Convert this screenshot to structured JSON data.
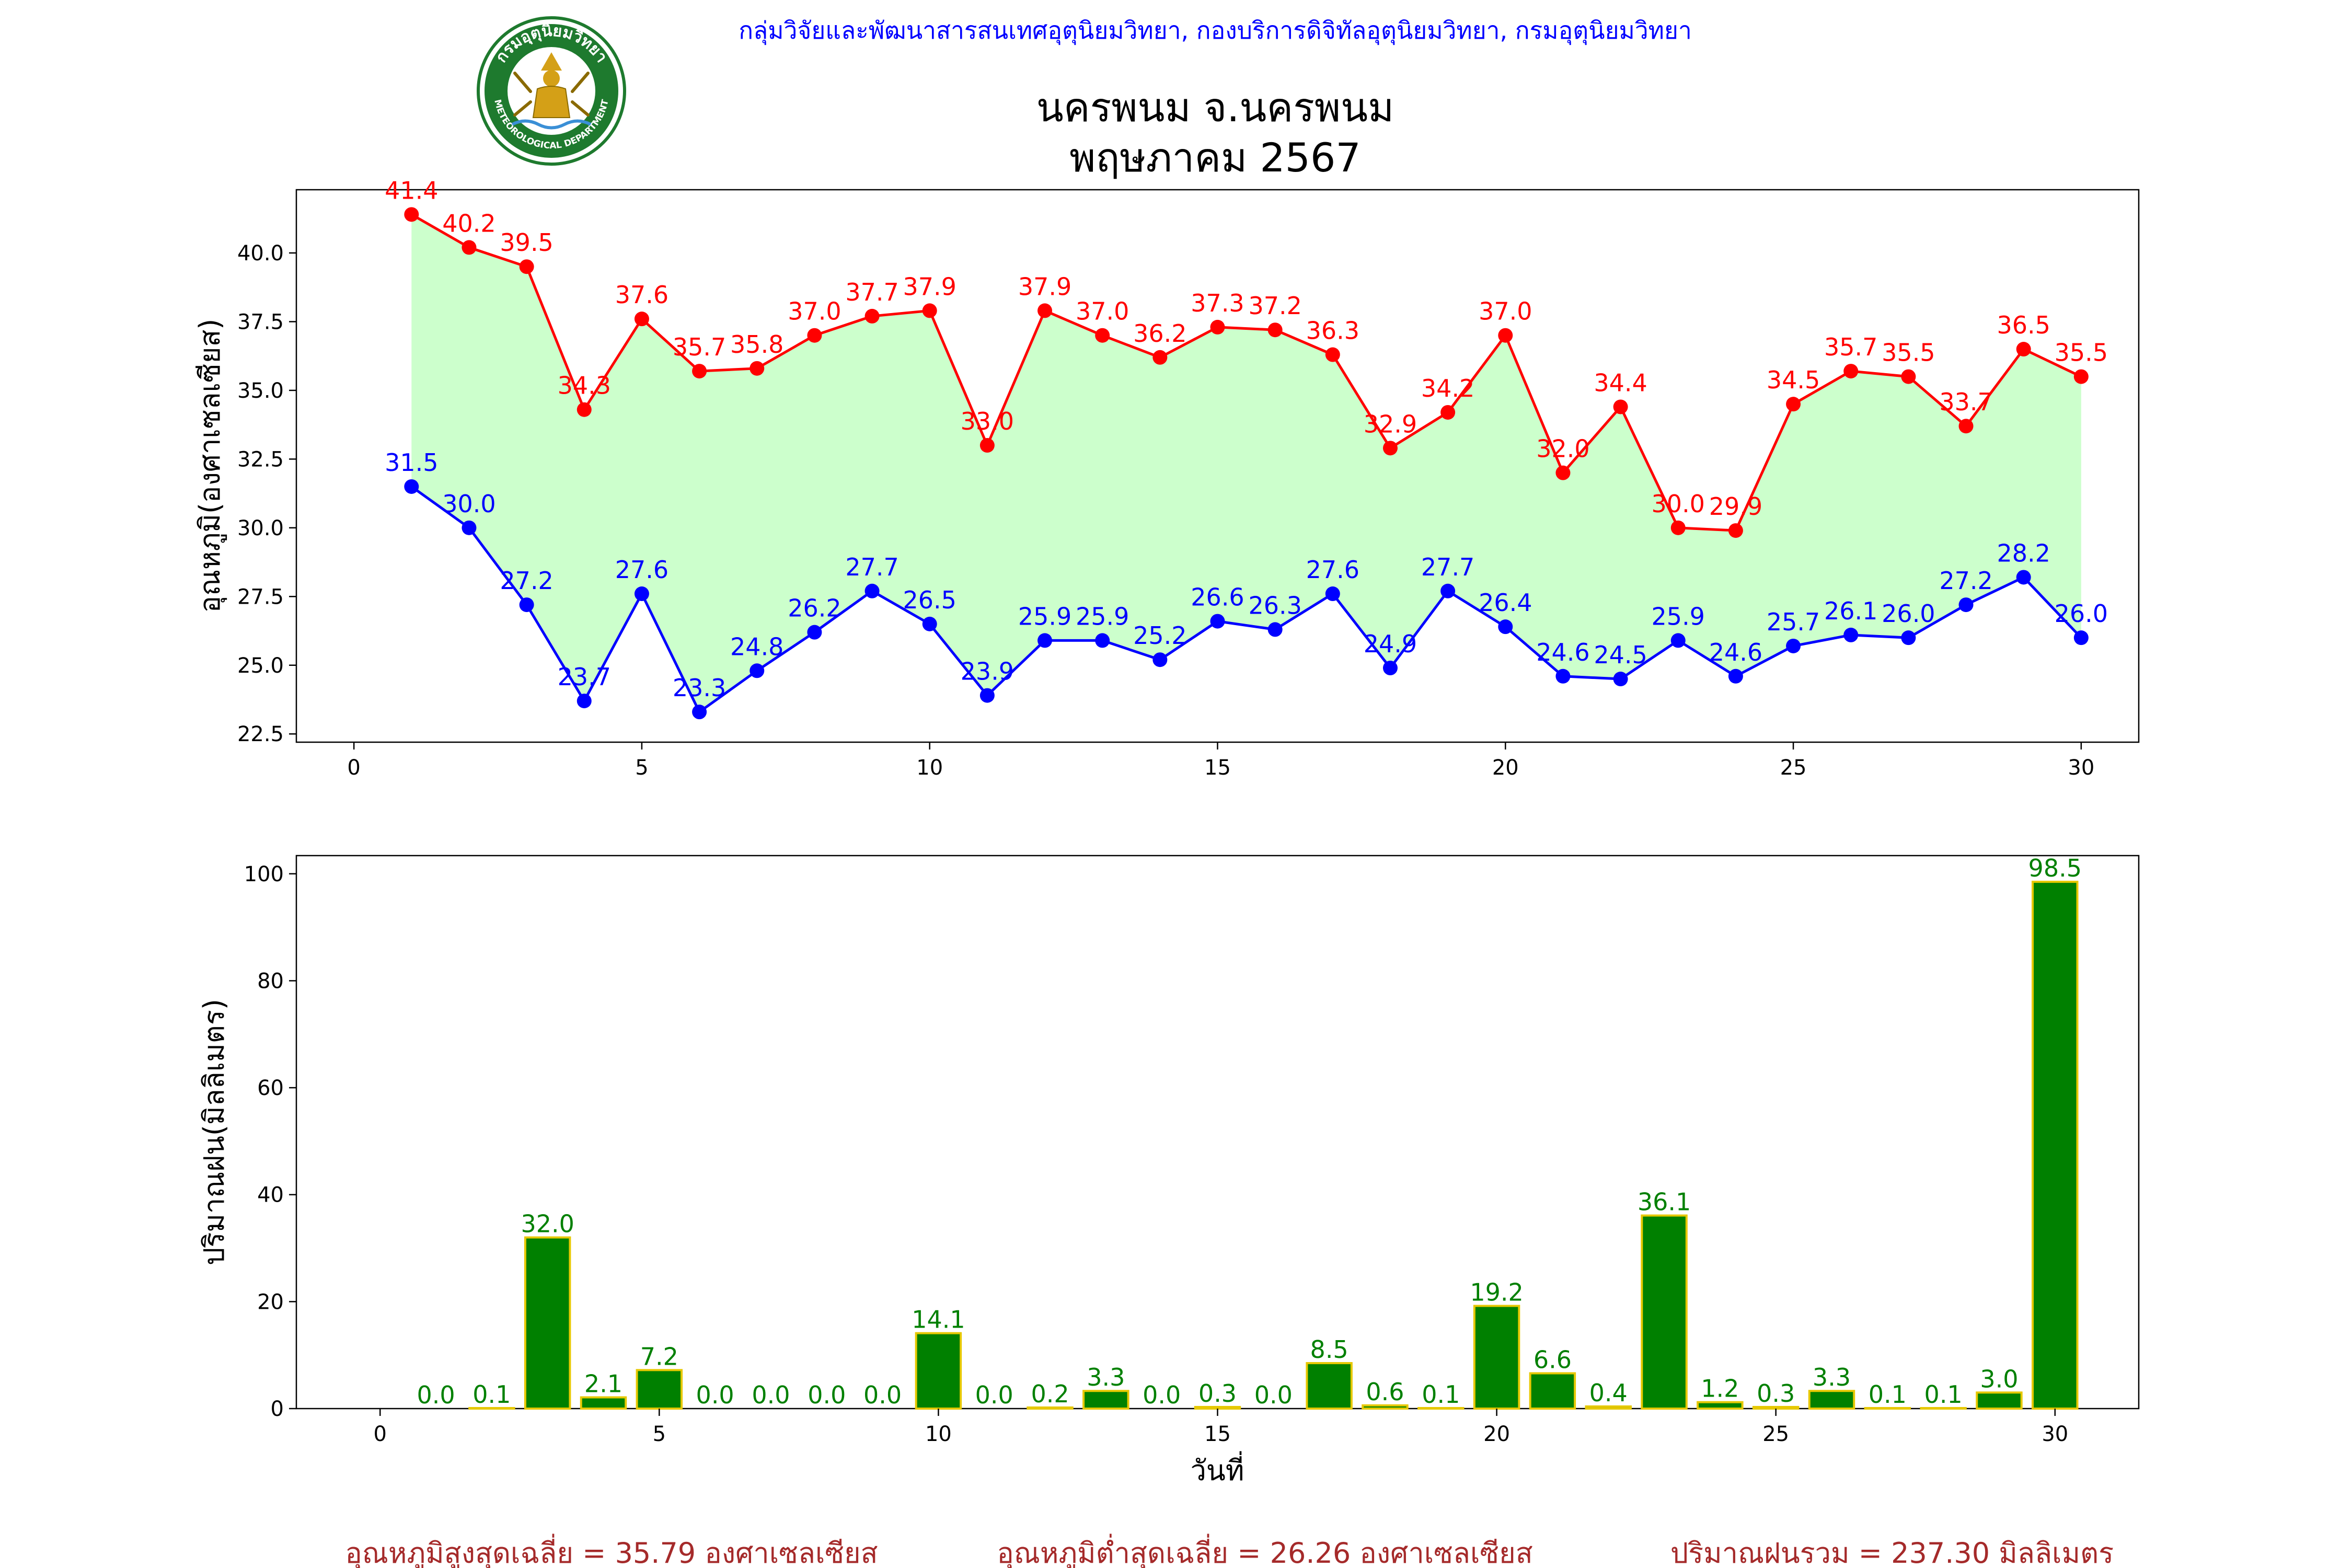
{
  "header": {
    "agency": "กลุ่มวิจัยและพัฒนาสารสนเทศอุตุนิยมวิทยา, กองบริการดิจิทัลอุตุนิยมวิทยา, กรมอุตุนิยมวิทยา",
    "title_line1": "นครพนม จ.นครพนม",
    "title_line2": "พฤษภาคม 2567",
    "logo": {
      "name": "meteorological-department-seal",
      "text_top": "กรมอุตุนิยมวิทยา",
      "text_bottom": "METEOROLOGICAL DEPARTMENT",
      "ring_color": "#1e7a2e"
    }
  },
  "chart_data": [
    {
      "type": "line",
      "ylabel": "อุณหภูมิ(องศาเซลเซียส)",
      "xlabel": "",
      "xlim": [
        -1,
        31
      ],
      "ylim": [
        22.2,
        42.3
      ],
      "xticks": [
        0,
        5,
        10,
        15,
        20,
        25,
        30
      ],
      "yticks": [
        22.5,
        25.0,
        27.5,
        30.0,
        32.5,
        35.0,
        37.5,
        40.0
      ],
      "fill_between": {
        "color": "#ccffcc"
      },
      "x": [
        1,
        2,
        3,
        4,
        5,
        6,
        7,
        8,
        9,
        10,
        11,
        12,
        13,
        14,
        15,
        16,
        17,
        18,
        19,
        20,
        21,
        22,
        23,
        24,
        25,
        26,
        27,
        28,
        29,
        30
      ],
      "series": [
        {
          "key": "max",
          "color": "#ff0000",
          "values": [
            41.4,
            40.2,
            39.5,
            34.3,
            37.6,
            35.7,
            35.8,
            37.0,
            37.7,
            37.9,
            33.0,
            37.9,
            37.0,
            36.2,
            37.3,
            37.2,
            36.3,
            32.9,
            34.2,
            37.0,
            32.0,
            34.4,
            30.0,
            29.9,
            34.5,
            35.7,
            35.5,
            33.7,
            36.5,
            35.5
          ]
        },
        {
          "key": "min",
          "color": "#0000ff",
          "values": [
            31.5,
            30.0,
            27.2,
            23.7,
            27.6,
            23.3,
            24.8,
            26.2,
            27.7,
            26.5,
            23.9,
            25.9,
            25.9,
            25.2,
            26.6,
            26.3,
            27.6,
            24.9,
            27.7,
            26.4,
            24.6,
            24.5,
            25.9,
            24.6,
            25.7,
            26.1,
            26.0,
            27.2,
            28.2,
            26.0
          ]
        }
      ]
    },
    {
      "type": "bar",
      "ylabel": "ปริมาณฝน(มิลลิเมตร)",
      "xlabel": "วันที่",
      "xlim": [
        -1.5,
        31.5
      ],
      "ylim": [
        0,
        103.4
      ],
      "xticks": [
        0,
        5,
        10,
        15,
        20,
        25,
        30
      ],
      "yticks": [
        0,
        20,
        40,
        60,
        80,
        100
      ],
      "bar_color": "#008000",
      "bar_edge_color": "#e6c800",
      "label_color": "#008000",
      "x": [
        1,
        2,
        3,
        4,
        5,
        6,
        7,
        8,
        9,
        10,
        11,
        12,
        13,
        14,
        15,
        16,
        17,
        18,
        19,
        20,
        21,
        22,
        23,
        24,
        25,
        26,
        27,
        28,
        29,
        30
      ],
      "values": [
        0.0,
        0.1,
        32.0,
        2.1,
        7.2,
        0.0,
        0.0,
        0.0,
        0.0,
        14.1,
        0.0,
        0.2,
        3.3,
        0.0,
        0.3,
        0.0,
        8.5,
        0.6,
        0.1,
        19.2,
        6.6,
        0.4,
        36.1,
        1.2,
        0.3,
        3.3,
        0.1,
        0.1,
        3.0,
        98.5
      ]
    }
  ],
  "summary": {
    "color": "#a52a2a",
    "avg_max": "อุณหภูมิสูงสุดเฉลี่ย = 35.79 องศาเซลเซียส",
    "avg_min": "อุณหภูมิต่ำสุดเฉลี่ย = 26.26 องศาเซลเซียส",
    "total_rain": "ปริมาณฝนรวม = 237.30 มิลลิเมตร"
  }
}
